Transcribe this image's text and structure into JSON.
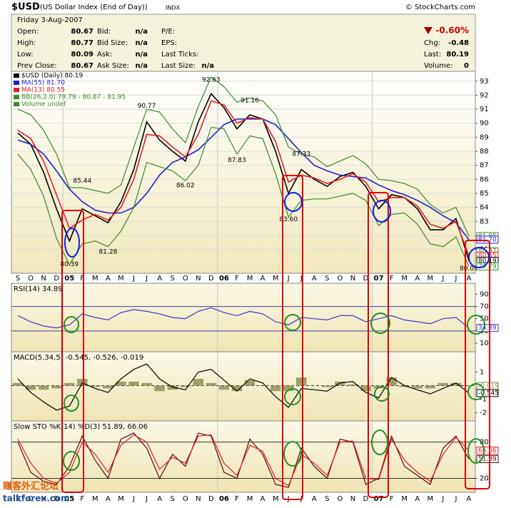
{
  "header": {
    "symbol": "$USD",
    "name": "(US Dollar Index (End of Day))",
    "exchange": "INDX",
    "credit": "© StockCharts.com",
    "date": "Friday  3-Aug-2007",
    "quote": [
      [
        {
          "label": "Open:",
          "value": "80.67"
        },
        {
          "label": "Bid:",
          "value": "n/a"
        },
        {
          "label": "P/E:"
        }
      ],
      [
        {
          "label": "High:",
          "value": "80.77"
        },
        {
          "label": "Bid Size:",
          "value": "n/a"
        },
        {
          "label": "EPS:"
        }
      ],
      [
        {
          "label": "Low:",
          "value": "80.09"
        },
        {
          "label": "Ask:",
          "value": "n/a"
        },
        {
          "label": "Last Ticks:"
        }
      ],
      [
        {
          "label": "Prev Close:",
          "value": "80.67"
        },
        {
          "label": "Ask Size:",
          "value": "n/a"
        },
        {
          "label": "Last Size:",
          "value": "n/a"
        }
      ]
    ],
    "change_pct": "-0.60%",
    "summary": [
      {
        "label": "Chg:",
        "value": "-0.48"
      },
      {
        "label": "Last:",
        "value": "80.19"
      },
      {
        "label": "Volume:",
        "value": "0"
      }
    ]
  },
  "watermark": [
    "赚客外汇论坛",
    "talkforex.com"
  ],
  "chart_data": [
    {
      "type": "line",
      "categories": [
        "S",
        "O",
        "N",
        "D",
        "05",
        "F",
        "M",
        "A",
        "M",
        "J",
        "J",
        "A",
        "S",
        "O",
        "N",
        "D",
        "06",
        "F",
        "M",
        "A",
        "M",
        "J",
        "J",
        "A",
        "S",
        "O",
        "N",
        "D",
        "07",
        "F",
        "M",
        "A",
        "M",
        "J",
        "J",
        "A"
      ],
      "ylim": [
        79.3,
        93.7
      ],
      "yticks": [
        81,
        82,
        83,
        84,
        85,
        86,
        87,
        88,
        89,
        90,
        91,
        92,
        93
      ],
      "grid": true,
      "series": [
        {
          "name": "$USD (Daily) 80.19",
          "color": "#000000",
          "values": [
            89.3,
            88.5,
            86.5,
            83.9,
            81.6,
            83.9,
            83.4,
            82.9,
            84.4,
            86.7,
            90.1,
            88.8,
            88.0,
            87.3,
            90.1,
            92.1,
            91.1,
            89.6,
            90.6,
            90.3,
            88.0,
            85.0,
            86.7,
            86.0,
            85.5,
            86.2,
            86.5,
            85.5,
            83.9,
            84.9,
            84.7,
            83.9,
            82.4,
            82.4,
            83.2,
            80.2
          ]
        },
        {
          "name": "MA(55) 81.70",
          "color": "#1f1fd0",
          "values": [
            88.8,
            88.5,
            87.8,
            86.6,
            85.3,
            84.4,
            83.8,
            83.6,
            83.6,
            84.0,
            85.0,
            86.3,
            87.2,
            87.6,
            88.1,
            89.0,
            89.9,
            90.3,
            90.3,
            90.3,
            89.9,
            88.9,
            87.9,
            87.0,
            86.6,
            86.3,
            86.2,
            86.1,
            85.6,
            85.2,
            84.9,
            84.5,
            84.0,
            83.4,
            82.9,
            81.7
          ]
        },
        {
          "name": "MA(13) 80.55",
          "color": "#e02020",
          "values": [
            89.5,
            88.9,
            87.3,
            84.9,
            82.5,
            83.1,
            83.5,
            83.1,
            84.0,
            86.0,
            89.2,
            89.1,
            88.3,
            87.6,
            89.2,
            91.6,
            91.3,
            90.0,
            90.4,
            90.3,
            88.7,
            85.8,
            86.3,
            86.1,
            85.7,
            86.0,
            86.4,
            85.8,
            84.4,
            84.7,
            84.7,
            84.1,
            82.8,
            82.5,
            83.0,
            80.55
          ]
        },
        {
          "name": "BB(26,2.0) 79.79 - 80.87 - 81.95",
          "color": "#3a8a2a",
          "upper": [
            91.0,
            90.6,
            89.5,
            87.8,
            85.4,
            85.4,
            85.2,
            85.0,
            85.6,
            88.3,
            91.0,
            90.8,
            89.6,
            88.6,
            91.2,
            93.3,
            92.6,
            91.5,
            91.8,
            91.6,
            90.6,
            88.3,
            87.8,
            87.6,
            86.9,
            87.3,
            87.7,
            87.1,
            86.0,
            85.9,
            85.7,
            85.3,
            84.2,
            83.6,
            84.0,
            81.95
          ],
          "lower": [
            87.8,
            86.7,
            84.8,
            81.8,
            79.9,
            81.4,
            81.6,
            81.2,
            82.3,
            84.0,
            87.2,
            86.9,
            86.6,
            85.9,
            87.0,
            89.7,
            89.6,
            87.8,
            89.1,
            88.9,
            86.4,
            83.3,
            84.5,
            84.6,
            84.6,
            84.8,
            85.0,
            84.5,
            82.7,
            83.5,
            83.6,
            82.8,
            81.4,
            81.2,
            81.9,
            79.79
          ]
        }
      ],
      "volume_legend": "Volume undef",
      "annotations": [
        {
          "category": 4,
          "value": 80.39
        },
        {
          "category": 5,
          "value": 85.44
        },
        {
          "category": 7,
          "value": 81.28
        },
        {
          "category": 10,
          "value": 90.77
        },
        {
          "category": 13,
          "value": 86.02
        },
        {
          "category": 15,
          "value": 92.63
        },
        {
          "category": 17,
          "value": 87.83
        },
        {
          "category": 18,
          "value": 91.16
        },
        {
          "category": 21,
          "value": {
            "value": 83.6,
            "label": "83.60"
          }
        },
        {
          "category": 22,
          "value": 87.33
        },
        {
          "category": 35,
          "value": 80.09
        }
      ],
      "tags": [
        {
          "value": 81.95,
          "color": "#3a8a2a"
        },
        {
          "value": {
            "value": 81.7,
            "label": "81.70"
          },
          "color": "#1f1fd0"
        },
        {
          "value": 80.87,
          "color": "#3a8a2a"
        },
        {
          "value": {
            "value": 80.55,
            "label": "80.55"
          },
          "color": "#e02020"
        },
        {
          "value": 80.19,
          "color": "#000000"
        },
        {
          "value": 79.79,
          "color": "#3a8a2a"
        }
      ]
    },
    {
      "type": "line",
      "title": "RSI(14) 34.89",
      "ylim": [
        -4,
        108
      ],
      "yticks": [
        10,
        30,
        50,
        70,
        90
      ],
      "hlines": [
        30,
        70
      ],
      "series": [
        {
          "color": "#3c3cc8",
          "values": [
            55,
            45,
            38,
            35,
            40,
            58,
            52,
            48,
            60,
            65,
            62,
            58,
            52,
            50,
            62,
            68,
            60,
            55,
            62,
            58,
            45,
            40,
            52,
            50,
            48,
            55,
            55,
            45,
            50,
            55,
            48,
            45,
            42,
            50,
            52,
            34.89
          ]
        }
      ],
      "tags": [
        {
          "value": 34.89,
          "color": "#3c3cc8"
        }
      ]
    },
    {
      "type": "line",
      "title": "MACD(5,34,5) -0.545, -0.526, -0.019",
      "ylim": [
        -2.6,
        2.5
      ],
      "yticks": [
        -2,
        -1,
        1
      ],
      "hlines": [
        0
      ],
      "series": [
        {
          "type": "bar",
          "color": "#8a8a50",
          "values": [
            0.2,
            -0.3,
            -0.3,
            -0.2,
            0.2,
            0.5,
            -0.1,
            -0.2,
            0.3,
            0.3,
            0.2,
            -0.4,
            -0.3,
            -0.1,
            0.5,
            0.2,
            -0.3,
            -0.4,
            0.4,
            0.0,
            -0.4,
            -0.4,
            0.6,
            0.0,
            -0.1,
            0.3,
            0.1,
            -0.4,
            -0.2,
            0.6,
            -0.1,
            -0.2,
            -0.2,
            0.2,
            0.2,
            -0.019
          ]
        },
        {
          "color": "#000000",
          "values": [
            0.5,
            -0.5,
            -1.2,
            -1.8,
            -1.5,
            0.2,
            -0.2,
            -0.5,
            0.5,
            1.2,
            1.6,
            0.5,
            -0.1,
            -0.3,
            1.0,
            1.2,
            0.4,
            -0.4,
            0.5,
            0.2,
            -0.8,
            -1.6,
            -0.2,
            -0.3,
            -0.4,
            0.2,
            0.3,
            -0.5,
            -0.9,
            0.6,
            0.0,
            -0.3,
            -0.6,
            -0.2,
            0.2,
            -0.545
          ]
        }
      ],
      "tags": [
        {
          "value": -0.019,
          "color": "#8a8a50"
        },
        {
          "value": -0.545,
          "color": "#000000"
        }
      ]
    },
    {
      "type": "line",
      "title": "Slow STO %K(14) %D(3) 51.89, 66.06",
      "ylim": [
        -3,
        115
      ],
      "yticks": [
        20,
        50,
        80
      ],
      "hlines": [
        20,
        80
      ],
      "series": [
        {
          "color": "#5a0a0a",
          "values": [
            80,
            30,
            15,
            10,
            40,
            90,
            50,
            20,
            85,
            95,
            70,
            20,
            60,
            40,
            95,
            90,
            30,
            20,
            85,
            60,
            10,
            5,
            70,
            40,
            20,
            85,
            80,
            10,
            20,
            90,
            40,
            25,
            10,
            70,
            90,
            51.89
          ]
        },
        {
          "color": "#e02020",
          "values": [
            85,
            45,
            20,
            12,
            30,
            80,
            60,
            30,
            75,
            92,
            80,
            35,
            55,
            45,
            90,
            92,
            45,
            25,
            75,
            65,
            20,
            8,
            60,
            45,
            25,
            80,
            82,
            20,
            18,
            85,
            50,
            30,
            15,
            60,
            88,
            66.06
          ]
        }
      ],
      "tags": [
        {
          "value": 66.06,
          "color": "#e02020"
        },
        {
          "value": 51.89,
          "color": "#5a0a0a"
        }
      ]
    }
  ]
}
